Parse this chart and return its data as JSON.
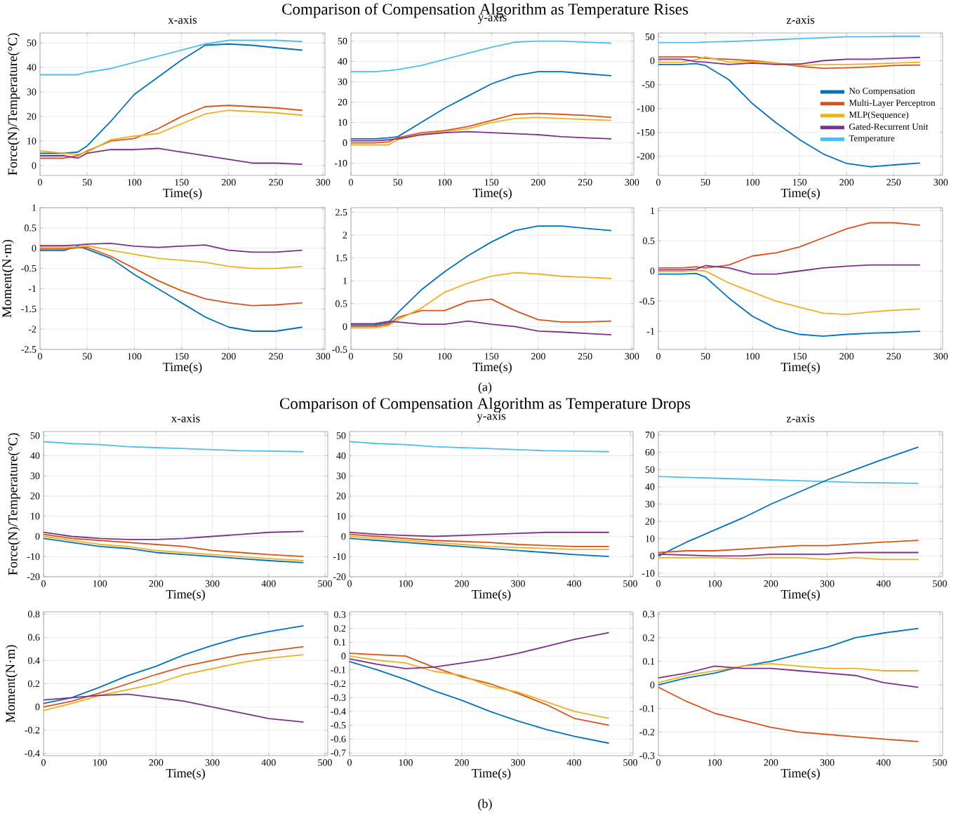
{
  "chart_data": [
    {
      "type": "other",
      "title": "Comparison of Compensation Algorithm as Temperature Rises"
    },
    {
      "type": "line",
      "title": "x-axis",
      "xlabel": "Time(s)",
      "ylabel": "Force(N)/Temperature(°C)",
      "x": [
        0,
        25,
        40,
        50,
        75,
        100,
        125,
        150,
        175,
        200,
        225,
        250,
        278
      ],
      "xlim": [
        0,
        302
      ],
      "ylim": [
        -4,
        54
      ],
      "xticks": [
        0,
        50,
        100,
        150,
        200,
        250,
        300
      ],
      "yticks": [
        0,
        10,
        20,
        30,
        40,
        50
      ],
      "grid": true,
      "series": [
        {
          "color": "#4dbeee",
          "values": [
            37,
            37,
            37,
            38,
            39.5,
            42,
            44.5,
            47,
            49.5,
            51,
            51,
            51,
            50.5
          ]
        },
        {
          "color": "#0072bd",
          "values": [
            5,
            5,
            5.5,
            8,
            18,
            29,
            36,
            43,
            49,
            49.5,
            49,
            48,
            47
          ]
        },
        {
          "color": "#d95319",
          "values": [
            3,
            3,
            4,
            6,
            10,
            11,
            15,
            20,
            24,
            24.5,
            24,
            23.5,
            22.5
          ]
        },
        {
          "color": "#edb120",
          "values": [
            6,
            5,
            4.5,
            5.5,
            10.5,
            12,
            13,
            17,
            21,
            22.5,
            22,
            21.5,
            20.5
          ]
        },
        {
          "color": "#7e2f8e",
          "values": [
            4,
            4,
            3,
            5,
            6.5,
            6.5,
            7,
            5.5,
            4,
            2.5,
            1,
            1,
            0.5
          ]
        }
      ]
    },
    {
      "type": "line",
      "title": "y-axis",
      "xlabel": "Time(s)",
      "x": [
        0,
        25,
        40,
        50,
        75,
        100,
        125,
        150,
        175,
        200,
        225,
        250,
        278
      ],
      "xlim": [
        0,
        302
      ],
      "ylim": [
        -16,
        54
      ],
      "xticks": [
        0,
        50,
        100,
        150,
        200,
        250,
        300
      ],
      "yticks": [
        -10,
        0,
        10,
        20,
        30,
        40,
        50
      ],
      "grid": true,
      "series": [
        {
          "color": "#4dbeee",
          "values": [
            35,
            35,
            35.5,
            36,
            38,
            41,
            44,
            47,
            49.5,
            50,
            50,
            49.5,
            49
          ]
        },
        {
          "color": "#0072bd",
          "values": [
            2,
            2,
            2.5,
            3,
            10,
            17,
            23,
            29,
            33,
            35,
            35,
            34,
            33
          ]
        },
        {
          "color": "#d95319",
          "values": [
            0,
            0,
            0.5,
            2.5,
            5,
            6,
            8,
            11,
            14,
            14.5,
            14,
            13.5,
            12.5
          ]
        },
        {
          "color": "#edb120",
          "values": [
            -1,
            -1,
            -1,
            1.5,
            4,
            5.5,
            7,
            10,
            12,
            12.5,
            12,
            11.5,
            11
          ]
        },
        {
          "color": "#7e2f8e",
          "values": [
            1,
            1,
            1.5,
            2,
            4,
            5,
            5.5,
            5,
            4.5,
            4,
            3,
            2.5,
            2
          ]
        }
      ]
    },
    {
      "type": "line",
      "title": "z-axis",
      "xlabel": "Time(s)",
      "x": [
        0,
        25,
        40,
        50,
        75,
        100,
        125,
        150,
        175,
        200,
        225,
        250,
        278
      ],
      "xlim": [
        0,
        302
      ],
      "ylim": [
        -240,
        58
      ],
      "xticks": [
        0,
        50,
        100,
        150,
        200,
        250,
        300
      ],
      "yticks": [
        -200,
        -150,
        -100,
        -50,
        0,
        50
      ],
      "grid": true,
      "legend": "right",
      "series": [
        {
          "name": "No Compensation",
          "color": "#0072bd",
          "values": [
            -8,
            -8,
            -6,
            -10,
            -40,
            -90,
            -130,
            -165,
            -195,
            -215,
            -222,
            -218,
            -214
          ]
        },
        {
          "name": "Multi-Layer Perceptron",
          "color": "#d95319",
          "values": [
            8,
            8,
            8,
            5,
            3,
            0,
            -5,
            -12,
            -16,
            -15,
            -13,
            -10,
            -9
          ]
        },
        {
          "name": "MLP(Sequence)",
          "color": "#edb120",
          "values": [
            -3,
            -3,
            2,
            8,
            -3,
            -2,
            -5,
            -10,
            -8,
            -8,
            -7,
            -5,
            -3
          ]
        },
        {
          "name": "Gated-Recurrent Unit",
          "color": "#7e2f8e",
          "values": [
            3,
            3,
            -2,
            -3,
            -8,
            -5,
            -8,
            -7,
            0,
            3,
            3,
            5,
            7
          ]
        },
        {
          "name": "Temperature",
          "color": "#4dbeee",
          "values": [
            38,
            38,
            38,
            39,
            40,
            42,
            44,
            46,
            48,
            50,
            50,
            51,
            51
          ]
        }
      ]
    },
    {
      "type": "line",
      "xlabel": "Time(s)",
      "ylabel": "Moment(N·m)",
      "x": [
        0,
        25,
        40,
        50,
        75,
        100,
        125,
        150,
        175,
        200,
        225,
        250,
        278
      ],
      "xlim": [
        0,
        302
      ],
      "ylim": [
        -2.5,
        1
      ],
      "xticks": [
        0,
        50,
        100,
        150,
        200,
        250,
        300
      ],
      "yticks": [
        -2.5,
        -2,
        -1.5,
        -1,
        -0.5,
        0,
        0.5,
        1
      ],
      "grid": true,
      "series": [
        {
          "color": "#0072bd",
          "values": [
            -0.06,
            -0.06,
            0.05,
            -0.03,
            -0.25,
            -0.65,
            -1.0,
            -1.35,
            -1.7,
            -1.95,
            -2.05,
            -2.05,
            -1.95
          ]
        },
        {
          "color": "#d95319",
          "values": [
            -0.02,
            -0.02,
            0.01,
            0.02,
            -0.2,
            -0.5,
            -0.8,
            -1.05,
            -1.25,
            -1.35,
            -1.42,
            -1.4,
            -1.35
          ]
        },
        {
          "color": "#edb120",
          "values": [
            0.02,
            0.02,
            0.03,
            0.06,
            -0.05,
            -0.15,
            -0.25,
            -0.3,
            -0.35,
            -0.45,
            -0.5,
            -0.5,
            -0.45
          ]
        },
        {
          "color": "#7e2f8e",
          "values": [
            0.06,
            0.06,
            0.08,
            0.1,
            0.12,
            0.05,
            0.02,
            0.05,
            0.08,
            -0.05,
            -0.1,
            -0.1,
            -0.05
          ]
        }
      ]
    },
    {
      "type": "line",
      "xlabel": "Time(s)",
      "annotations": [
        "(a)"
      ],
      "x": [
        0,
        25,
        40,
        50,
        75,
        100,
        125,
        150,
        175,
        200,
        225,
        250,
        278
      ],
      "xlim": [
        0,
        302
      ],
      "ylim": [
        -0.5,
        2.6
      ],
      "xticks": [
        0,
        50,
        100,
        150,
        200,
        250,
        300
      ],
      "yticks": [
        -0.5,
        0,
        0.5,
        1,
        1.5,
        2,
        2.5
      ],
      "grid": true,
      "series": [
        {
          "color": "#0072bd",
          "values": [
            0.03,
            0.03,
            0.08,
            0.3,
            0.8,
            1.2,
            1.55,
            1.85,
            2.1,
            2.2,
            2.2,
            2.15,
            2.1
          ]
        },
        {
          "color": "#d95319",
          "values": [
            0,
            0,
            0.05,
            0.2,
            0.35,
            0.35,
            0.55,
            0.6,
            0.35,
            0.15,
            0.1,
            0.1,
            0.12
          ]
        },
        {
          "color": "#edb120",
          "values": [
            -0.03,
            -0.03,
            0.02,
            0.15,
            0.4,
            0.75,
            0.95,
            1.1,
            1.18,
            1.15,
            1.1,
            1.08,
            1.05
          ]
        },
        {
          "color": "#7e2f8e",
          "values": [
            0.06,
            0.06,
            0.11,
            0.1,
            0.05,
            0.05,
            0.12,
            0.05,
            0,
            -0.1,
            -0.12,
            -0.15,
            -0.18
          ]
        }
      ]
    },
    {
      "type": "line",
      "xlabel": "Time(s)",
      "x": [
        0,
        25,
        40,
        50,
        75,
        100,
        125,
        150,
        175,
        200,
        225,
        250,
        278
      ],
      "xlim": [
        0,
        302
      ],
      "ylim": [
        -1.3,
        1.05
      ],
      "xticks": [
        0,
        50,
        100,
        150,
        200,
        250,
        300
      ],
      "yticks": [
        -1,
        -0.5,
        0,
        0.5,
        1
      ],
      "grid": true,
      "series": [
        {
          "color": "#0072bd",
          "values": [
            -0.05,
            -0.05,
            -0.04,
            -0.1,
            -0.45,
            -0.75,
            -0.95,
            -1.05,
            -1.08,
            -1.05,
            -1.03,
            -1.02,
            -1.0
          ]
        },
        {
          "color": "#d95319",
          "values": [
            0.05,
            0.05,
            0.07,
            0.05,
            0.1,
            0.25,
            0.3,
            0.4,
            0.55,
            0.7,
            0.8,
            0.8,
            0.76
          ]
        },
        {
          "color": "#edb120",
          "values": [
            -0.01,
            -0.01,
            0.01,
            0,
            -0.2,
            -0.35,
            -0.5,
            -0.6,
            -0.7,
            -0.72,
            -0.68,
            -0.65,
            -0.63
          ]
        },
        {
          "color": "#7e2f8e",
          "values": [
            0.02,
            0.02,
            0.03,
            0.09,
            0.05,
            -0.05,
            -0.05,
            0,
            0.05,
            0.08,
            0.1,
            0.1,
            0.1
          ]
        }
      ]
    },
    {
      "type": "other",
      "title": "Comparison of Compensation Algorithm as Temperature Drops"
    },
    {
      "type": "line",
      "title": "x-axis",
      "xlabel": "Time(s)",
      "ylabel": "Force(N)/Temperature(°C)",
      "x": [
        0,
        50,
        100,
        150,
        200,
        250,
        300,
        350,
        400,
        462
      ],
      "xlim": [
        0,
        505
      ],
      "ylim": [
        -20,
        52
      ],
      "xticks": [
        0,
        100,
        200,
        300,
        400,
        500
      ],
      "yticks": [
        -20,
        -10,
        0,
        10,
        20,
        30,
        40,
        50
      ],
      "grid": true,
      "series": [
        {
          "color": "#4dbeee",
          "values": [
            47,
            46,
            45.5,
            44.5,
            44,
            43.5,
            43,
            42.5,
            42.3,
            42
          ]
        },
        {
          "color": "#0072bd",
          "values": [
            -1,
            -3,
            -5,
            -6,
            -8,
            -9,
            -10,
            -11,
            -12,
            -13
          ]
        },
        {
          "color": "#d95319",
          "values": [
            1,
            -1,
            -2,
            -3,
            -4,
            -5,
            -7,
            -8,
            -9,
            -10
          ]
        },
        {
          "color": "#edb120",
          "values": [
            0,
            -2,
            -4,
            -5,
            -7,
            -8,
            -9,
            -10,
            -11,
            -12
          ]
        },
        {
          "color": "#7e2f8e",
          "values": [
            2,
            0,
            -1,
            -1.5,
            -1.5,
            -1,
            0,
            1,
            2,
            2.5
          ]
        }
      ]
    },
    {
      "type": "line",
      "title": "y-axis",
      "xlabel": "Time(s)",
      "x": [
        0,
        50,
        100,
        150,
        200,
        250,
        300,
        350,
        400,
        462
      ],
      "xlim": [
        0,
        505
      ],
      "ylim": [
        -20,
        52
      ],
      "xticks": [
        0,
        100,
        200,
        300,
        400,
        500
      ],
      "yticks": [
        -20,
        -10,
        0,
        10,
        20,
        30,
        40,
        50
      ],
      "grid": true,
      "series": [
        {
          "color": "#4dbeee",
          "values": [
            47,
            46,
            45.5,
            44.5,
            44,
            43.5,
            43,
            42.5,
            42.3,
            42
          ]
        },
        {
          "color": "#0072bd",
          "values": [
            -1,
            -2,
            -3,
            -4,
            -5,
            -6,
            -7,
            -8,
            -9,
            -10
          ]
        },
        {
          "color": "#d95319",
          "values": [
            1,
            0,
            -1,
            -2,
            -2.5,
            -3,
            -4,
            -4.5,
            -5,
            -5
          ]
        },
        {
          "color": "#edb120",
          "values": [
            0,
            -1,
            -2,
            -3,
            -4,
            -5,
            -5.5,
            -6,
            -6.5,
            -6.5
          ]
        },
        {
          "color": "#7e2f8e",
          "values": [
            2,
            1,
            0.5,
            0,
            0.5,
            1,
            1.5,
            2,
            2,
            2
          ]
        }
      ]
    },
    {
      "type": "line",
      "title": "z-axis",
      "xlabel": "Time(s)",
      "x": [
        0,
        50,
        100,
        150,
        200,
        250,
        300,
        350,
        400,
        462
      ],
      "xlim": [
        0,
        505
      ],
      "ylim": [
        -12,
        72
      ],
      "xticks": [
        0,
        100,
        200,
        300,
        400,
        500
      ],
      "yticks": [
        -10,
        0,
        10,
        20,
        30,
        40,
        50,
        60,
        70
      ],
      "grid": true,
      "series": [
        {
          "color": "#4dbeee",
          "values": [
            46,
            45.5,
            45,
            44.5,
            44,
            43.5,
            43,
            42.5,
            42.3,
            42
          ]
        },
        {
          "color": "#0072bd",
          "values": [
            0,
            8,
            15,
            22,
            30,
            37,
            44,
            50,
            56,
            63
          ]
        },
        {
          "color": "#d95319",
          "values": [
            2,
            3,
            3,
            4,
            5,
            6,
            6,
            7,
            8,
            9
          ]
        },
        {
          "color": "#edb120",
          "values": [
            -1,
            -1,
            -1,
            -1.5,
            -1,
            -1,
            -2,
            -1,
            -2,
            -2
          ]
        },
        {
          "color": "#7e2f8e",
          "values": [
            1,
            0.5,
            0,
            0,
            1,
            1,
            1,
            2,
            2,
            2
          ]
        }
      ]
    },
    {
      "type": "line",
      "xlabel": "Time(s)",
      "ylabel": "Moment(N·m)",
      "x": [
        0,
        50,
        100,
        150,
        200,
        250,
        300,
        350,
        400,
        462
      ],
      "xlim": [
        0,
        505
      ],
      "ylim": [
        -0.42,
        0.82
      ],
      "xticks": [
        0,
        100,
        200,
        300,
        400,
        500
      ],
      "yticks": [
        -0.4,
        -0.2,
        0,
        0.2,
        0.4,
        0.6,
        0.8
      ],
      "grid": true,
      "series": [
        {
          "color": "#0072bd",
          "values": [
            0.03,
            0.08,
            0.17,
            0.27,
            0.35,
            0.45,
            0.53,
            0.6,
            0.65,
            0.7
          ]
        },
        {
          "color": "#d95319",
          "values": [
            0,
            0.05,
            0.12,
            0.2,
            0.28,
            0.35,
            0.4,
            0.45,
            0.48,
            0.52
          ]
        },
        {
          "color": "#edb120",
          "values": [
            -0.03,
            0.03,
            0.1,
            0.15,
            0.2,
            0.28,
            0.33,
            0.38,
            0.42,
            0.45
          ]
        },
        {
          "color": "#7e2f8e",
          "values": [
            0.06,
            0.08,
            0.1,
            0.11,
            0.08,
            0.05,
            0,
            -0.05,
            -0.1,
            -0.13
          ]
        }
      ]
    },
    {
      "type": "line",
      "xlabel": "Time(s)",
      "annotations": [
        "(b)"
      ],
      "x": [
        0,
        50,
        100,
        150,
        200,
        250,
        300,
        350,
        400,
        462
      ],
      "xlim": [
        0,
        505
      ],
      "ylim": [
        -0.72,
        0.32
      ],
      "xticks": [
        0,
        100,
        200,
        300,
        400,
        500
      ],
      "yticks": [
        -0.7,
        -0.6,
        -0.5,
        -0.4,
        -0.3,
        -0.2,
        -0.1,
        0,
        0.1,
        0.2,
        0.3
      ],
      "grid": true,
      "series": [
        {
          "color": "#0072bd",
          "values": [
            -0.04,
            -0.1,
            -0.17,
            -0.25,
            -0.32,
            -0.4,
            -0.47,
            -0.53,
            -0.58,
            -0.63
          ]
        },
        {
          "color": "#d95319",
          "values": [
            0.02,
            0.01,
            0,
            -0.08,
            -0.15,
            -0.2,
            -0.27,
            -0.35,
            -0.45,
            -0.5
          ]
        },
        {
          "color": "#edb120",
          "values": [
            0,
            -0.03,
            -0.05,
            -0.11,
            -0.14,
            -0.22,
            -0.26,
            -0.33,
            -0.4,
            -0.45
          ]
        },
        {
          "color": "#7e2f8e",
          "values": [
            -0.02,
            -0.06,
            -0.09,
            -0.08,
            -0.05,
            -0.02,
            0.02,
            0.07,
            0.12,
            0.17
          ]
        }
      ]
    },
    {
      "type": "line",
      "xlabel": "Time(s)",
      "x": [
        0,
        50,
        100,
        150,
        200,
        250,
        300,
        350,
        400,
        462
      ],
      "xlim": [
        0,
        505
      ],
      "ylim": [
        -0.3,
        0.31
      ],
      "xticks": [
        0,
        100,
        200,
        300,
        400,
        500
      ],
      "yticks": [
        -0.3,
        -0.2,
        -0.1,
        0,
        0.1,
        0.2,
        0.3
      ],
      "grid": true,
      "series": [
        {
          "color": "#0072bd",
          "values": [
            0,
            0.03,
            0.05,
            0.08,
            0.1,
            0.13,
            0.16,
            0.2,
            0.22,
            0.24
          ]
        },
        {
          "color": "#d95319",
          "values": [
            -0.01,
            -0.07,
            -0.12,
            -0.15,
            -0.18,
            -0.2,
            -0.21,
            -0.22,
            -0.23,
            -0.24
          ]
        },
        {
          "color": "#edb120",
          "values": [
            0.01,
            0.04,
            0.06,
            0.08,
            0.09,
            0.08,
            0.07,
            0.07,
            0.06,
            0.06
          ]
        },
        {
          "color": "#7e2f8e",
          "values": [
            0.03,
            0.05,
            0.08,
            0.07,
            0.07,
            0.06,
            0.05,
            0.04,
            0.01,
            -0.01
          ]
        }
      ]
    }
  ]
}
